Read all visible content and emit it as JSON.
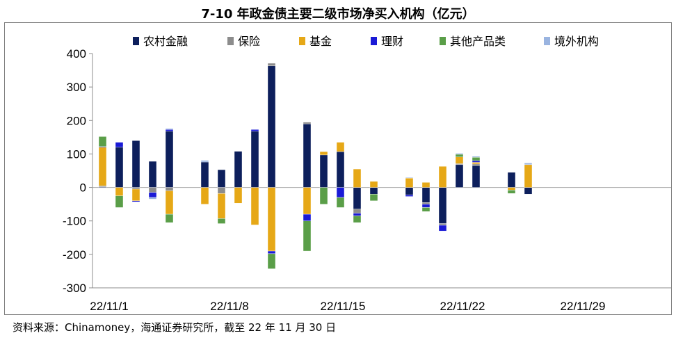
{
  "title": "7-10 年政金债主要二级市场净买入机构（亿元）",
  "source": "资料来源：Chinamoney，海通证券研究所，截至 22 年 11 月 30 日",
  "chart_data": {
    "type": "bar",
    "stacked": true,
    "ylim": [
      -300,
      400
    ],
    "yticks": [
      400,
      300,
      200,
      100,
      0,
      -100,
      -200,
      -300
    ],
    "xlabels": [
      "22/11/1",
      "22/11/8",
      "22/11/15",
      "22/11/22",
      "22/11/29"
    ],
    "legend_position": "top",
    "colors": {
      "农村金融": "#0d1f5c",
      "保险": "#8c8c8c",
      "基金": "#e6a817",
      "理财": "#1a1ad6",
      "其他产品类": "#5a9e48",
      "境外机构": "#9ab4e0"
    },
    "series_names": [
      "农村金融",
      "保险",
      "基金",
      "理财",
      "其他产品类",
      "境外机构"
    ],
    "days": [
      {
        "date": "22/11/1",
        "values": {
          "农村金融": 2,
          "保险": 3,
          "基金": 115,
          "理财": 2,
          "其他产品类": 30,
          "境外机构": 0
        }
      },
      {
        "date": "22/11/2",
        "values": {
          "农村金融": 120,
          "保险": 0,
          "基金": -25,
          "理财": 15,
          "其他产品类": -35,
          "境外机构": 0
        }
      },
      {
        "date": "22/11/3",
        "values": {
          "农村金融": 140,
          "保险": -5,
          "基金": -35,
          "理财": -3,
          "其他产品类": 0,
          "境外机构": 0
        }
      },
      {
        "date": "22/11/4",
        "values": {
          "农村金融": 78,
          "保险": -15,
          "基金": 0,
          "理财": -15,
          "其他产品类": 0,
          "境外机构": -5
        }
      },
      {
        "date": "22/11/7",
        "values": {
          "农村金融": 168,
          "保险": -10,
          "基金": -70,
          "理财": 5,
          "其他产品类": -25,
          "境外机构": 3
        }
      },
      {
        "date": "22/11/8",
        "values": {
          "农村金融": 76,
          "保险": 0,
          "基金": -50,
          "理财": 0,
          "其他产品类": 0,
          "境外机构": 5
        }
      },
      {
        "date": "22/11/9",
        "values": {
          "农村金融": 53,
          "保险": -18,
          "基金": -75,
          "理财": 0,
          "其他产品类": -15,
          "境外机构": 0
        }
      },
      {
        "date": "22/11/10",
        "values": {
          "农村金融": 108,
          "保险": 0,
          "基金": -47,
          "理财": 0,
          "其他产品类": 0,
          "境外机构": 0
        }
      },
      {
        "date": "22/11/11",
        "values": {
          "农村金融": 168,
          "保险": 0,
          "基金": -112,
          "理财": 5,
          "其他产品类": 0,
          "境外机构": 0
        }
      },
      {
        "date": "22/11/14",
        "values": {
          "农村金融": 363,
          "保险": 8,
          "基金": -190,
          "理财": -8,
          "其他产品类": -45,
          "境外机构": 0
        }
      },
      {
        "date": "22/11/15",
        "values": {
          "农村金融": 190,
          "保险": 5,
          "基金": -80,
          "理财": -20,
          "其他产品类": -90,
          "境外机构": 0
        }
      },
      {
        "date": "22/11/16",
        "values": {
          "农村金融": 97,
          "保险": 0,
          "基金": 10,
          "理财": 0,
          "其他产品类": -50,
          "境外机构": 0
        }
      },
      {
        "date": "22/11/17",
        "values": {
          "农村金融": 107,
          "保险": 0,
          "基金": 28,
          "理财": -30,
          "其他产品类": -30,
          "境外机构": 0
        }
      },
      {
        "date": "22/11/18",
        "values": {
          "农村金融": -65,
          "保险": -12,
          "基金": 55,
          "理财": -8,
          "其他产品类": -20,
          "境外机构": 0
        }
      },
      {
        "date": "22/11/21",
        "values": {
          "农村金融": -20,
          "保险": 0,
          "基金": 18,
          "理财": 0,
          "其他产品类": -20,
          "境外机构": 0
        }
      },
      {
        "date": "22/11/22",
        "values": {
          "农村金融": -22,
          "保险": 0,
          "基金": 28,
          "理财": -5,
          "其他产品类": 0,
          "境外机构": 2
        }
      },
      {
        "date": "22/11/23",
        "values": {
          "农村金融": -45,
          "保险": -5,
          "基金": 15,
          "理财": -10,
          "其他产品类": -12,
          "境外机构": 0
        }
      },
      {
        "date": "22/11/24",
        "values": {
          "农村金融": -108,
          "保险": -5,
          "基金": 63,
          "理财": -17,
          "其他产品类": 0,
          "境外机构": 0
        }
      },
      {
        "date": "22/11/25",
        "values": {
          "农村金融": 68,
          "保险": 3,
          "基金": 20,
          "理财": 0,
          "其他产品类": 8,
          "境外机构": 3
        }
      },
      {
        "date": "22/11/28",
        "values": {
          "农村金融": 65,
          "保险": 5,
          "基金": 5,
          "理财": 5,
          "其他产品类": 10,
          "境外机构": 3
        }
      },
      {
        "date": "22/11/29",
        "values": {
          "农村金融": 45,
          "保险": 0,
          "基金": -8,
          "理财": 0,
          "其他产品类": -10,
          "境外机构": 0
        }
      },
      {
        "date": "22/11/30",
        "values": {
          "农村金融": -20,
          "保险": 0,
          "基金": 68,
          "理财": 0,
          "其他产品类": 0,
          "境外机构": 5
        }
      }
    ]
  }
}
